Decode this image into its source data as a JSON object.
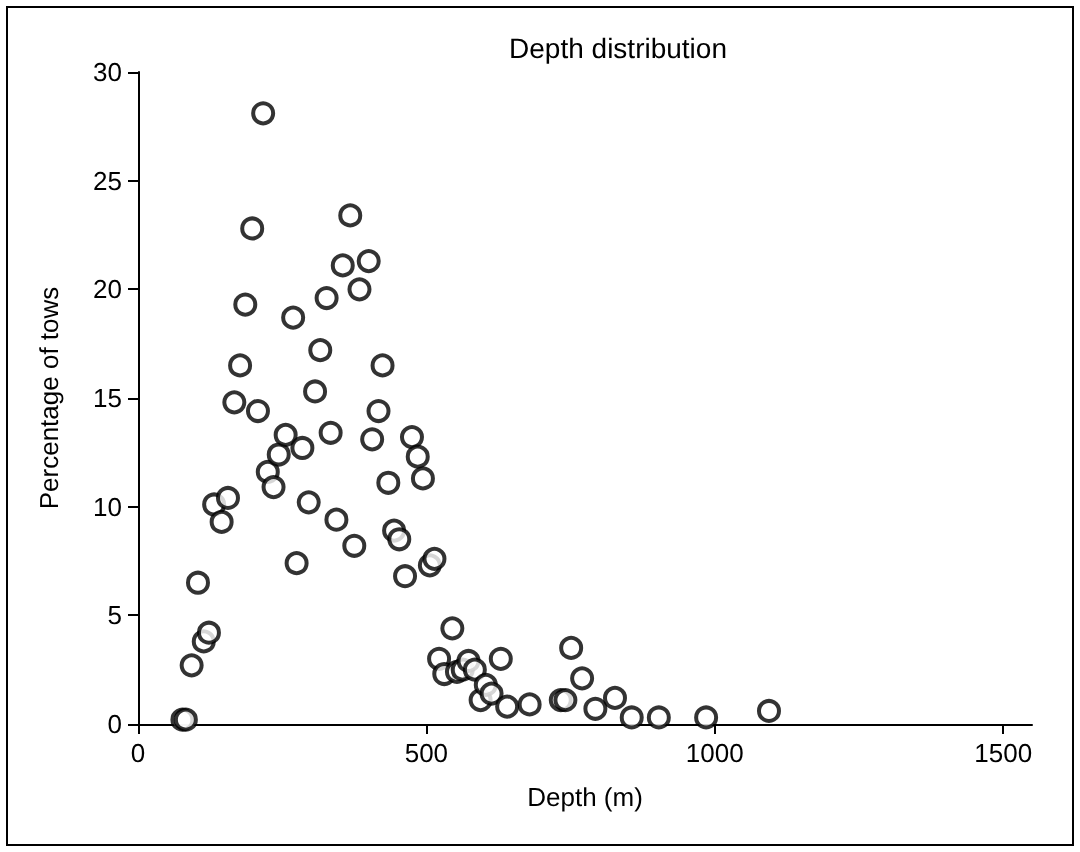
{
  "chart_data": {
    "type": "scatter",
    "title": "Depth distribution",
    "xlabel": "Depth (m)",
    "ylabel": "Percentage of tows",
    "marker": "circle",
    "grid": false,
    "xlim": [
      0,
      1550
    ],
    "xticks": [
      0,
      500,
      1000,
      1500
    ],
    "ylim": [
      0,
      30
    ],
    "yticks": [
      0,
      5,
      10,
      15,
      20,
      25,
      30
    ],
    "series": [
      {
        "color": "#000000",
        "x": [
          77,
          83,
          93,
          104,
          114,
          123,
          132,
          145,
          156,
          167,
          177,
          186,
          198,
          217,
          208,
          225,
          235,
          244,
          256,
          269,
          275,
          285,
          296,
          307,
          316,
          327,
          334,
          344,
          355,
          368,
          375,
          384,
          400,
          406,
          417,
          424,
          434,
          444,
          453,
          463,
          475,
          485,
          494,
          506,
          514,
          522,
          531,
          545,
          553,
          563,
          573,
          584,
          594,
          603,
          613,
          629,
          640,
          679,
          733,
          741,
          751,
          770,
          793,
          827,
          856,
          903,
          985,
          1094
        ],
        "values": [
          0.2,
          0.2,
          2.7,
          6.5,
          3.8,
          4.2,
          10.1,
          9.3,
          10.4,
          14.8,
          16.5,
          19.3,
          22.8,
          28.1,
          14.4,
          11.6,
          10.9,
          12.4,
          13.3,
          18.7,
          7.4,
          12.7,
          10.2,
          15.3,
          17.2,
          19.6,
          13.4,
          9.4,
          21.1,
          23.4,
          8.2,
          20.0,
          21.3,
          13.1,
          14.4,
          16.5,
          11.1,
          8.9,
          8.5,
          6.8,
          13.2,
          12.3,
          11.3,
          7.3,
          7.6,
          3.0,
          2.3,
          4.4,
          2.4,
          2.5,
          2.9,
          2.5,
          1.1,
          1.8,
          1.4,
          3.0,
          0.8,
          0.9,
          1.1,
          1.1,
          3.5,
          2.1,
          0.7,
          1.2,
          0.3,
          0.3,
          0.3,
          0.6
        ]
      }
    ]
  }
}
